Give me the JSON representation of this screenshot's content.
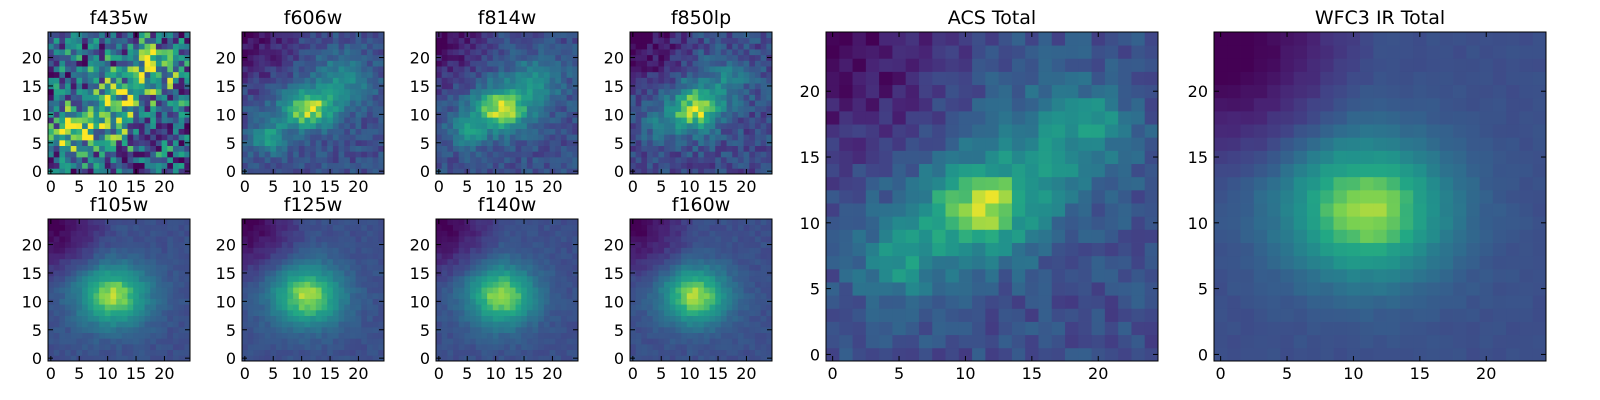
{
  "chart_data": [
    {
      "type": "heatmap",
      "title": "f435w",
      "xticks": [
        "0",
        "5",
        "10",
        "15",
        "20"
      ],
      "yticks": [
        "0",
        "5",
        "10",
        "15",
        "20"
      ],
      "xlim": [
        -0.5,
        24.5
      ],
      "ylim": [
        -0.5,
        24.5
      ],
      "grid_size": [
        25,
        25
      ],
      "colormap": "viridis",
      "peaks": [
        {
          "x": 4,
          "y": 7,
          "amp": 0.48,
          "sx": 2.5,
          "sy": 2.5
        },
        {
          "x": 11,
          "y": 11,
          "amp": 0.38,
          "sx": 4,
          "sy": 3.5
        },
        {
          "x": 18,
          "y": 18,
          "amp": 0.35,
          "sx": 4,
          "sy": 3
        }
      ],
      "background": 0.38,
      "noise": 0.42,
      "corner_dark": 0.0
    },
    {
      "type": "heatmap",
      "title": "f606w",
      "xticks": [
        "0",
        "5",
        "10",
        "15",
        "20"
      ],
      "yticks": [
        "0",
        "5",
        "10",
        "15",
        "20"
      ],
      "xlim": [
        -0.5,
        24.5
      ],
      "ylim": [
        -0.5,
        24.5
      ],
      "grid_size": [
        25,
        25
      ],
      "colormap": "viridis",
      "peaks": [
        {
          "x": 11,
          "y": 11,
          "amp": 0.65,
          "sx": 3.5,
          "sy": 2.5
        },
        {
          "x": 4,
          "y": 6,
          "amp": 0.38,
          "sx": 2,
          "sy": 2
        },
        {
          "x": 17,
          "y": 16,
          "amp": 0.3,
          "sx": 3.5,
          "sy": 3
        }
      ],
      "background": 0.3,
      "noise": 0.1,
      "corner_dark": 0.3
    },
    {
      "type": "heatmap",
      "title": "f814w",
      "xticks": [
        "0",
        "5",
        "10",
        "15",
        "20"
      ],
      "yticks": [
        "0",
        "5",
        "10",
        "15",
        "20"
      ],
      "xlim": [
        -0.5,
        24.5
      ],
      "ylim": [
        -0.5,
        24.5
      ],
      "grid_size": [
        25,
        25
      ],
      "colormap": "viridis",
      "peaks": [
        {
          "x": 11,
          "y": 11,
          "amp": 0.65,
          "sx": 3.5,
          "sy": 2.8
        },
        {
          "x": 5,
          "y": 7,
          "amp": 0.28,
          "sx": 2.5,
          "sy": 2
        },
        {
          "x": 17,
          "y": 16,
          "amp": 0.28,
          "sx": 3.5,
          "sy": 3
        }
      ],
      "background": 0.3,
      "noise": 0.1,
      "corner_dark": 0.3
    },
    {
      "type": "heatmap",
      "title": "f850lp",
      "xticks": [
        "0",
        "5",
        "10",
        "15",
        "20"
      ],
      "yticks": [
        "0",
        "5",
        "10",
        "15",
        "20"
      ],
      "xlim": [
        -0.5,
        24.5
      ],
      "ylim": [
        -0.5,
        24.5
      ],
      "grid_size": [
        25,
        25
      ],
      "colormap": "viridis",
      "peaks": [
        {
          "x": 11,
          "y": 11,
          "amp": 0.65,
          "sx": 3.2,
          "sy": 2.8
        },
        {
          "x": 5,
          "y": 8,
          "amp": 0.22,
          "sx": 2.5,
          "sy": 2
        },
        {
          "x": 16,
          "y": 16,
          "amp": 0.22,
          "sx": 3.5,
          "sy": 3
        }
      ],
      "background": 0.28,
      "noise": 0.13,
      "corner_dark": 0.35
    },
    {
      "type": "heatmap",
      "title": "ACS Total",
      "xticks": [
        "0",
        "5",
        "10",
        "15",
        "20"
      ],
      "yticks": [
        "0",
        "5",
        "10",
        "15",
        "20"
      ],
      "xlim": [
        -0.5,
        24.5
      ],
      "ylim": [
        -0.5,
        24.5
      ],
      "grid_size": [
        25,
        25
      ],
      "colormap": "viridis",
      "peaks": [
        {
          "x": 11,
          "y": 11,
          "amp": 0.62,
          "sx": 3.2,
          "sy": 2.6
        },
        {
          "x": 5,
          "y": 7,
          "amp": 0.34,
          "sx": 2.2,
          "sy": 2.2
        },
        {
          "x": 17,
          "y": 16,
          "amp": 0.3,
          "sx": 3.5,
          "sy": 3.2
        },
        {
          "x": 20,
          "y": 18,
          "amp": 0.18,
          "sx": 1.5,
          "sy": 1.5
        }
      ],
      "background": 0.3,
      "noise": 0.09,
      "corner_dark": 0.35
    },
    {
      "type": "heatmap",
      "title": "f105w",
      "xticks": [
        "0",
        "5",
        "10",
        "15",
        "20"
      ],
      "yticks": [
        "0",
        "5",
        "10",
        "15",
        "20"
      ],
      "xlim": [
        -0.5,
        24.5
      ],
      "ylim": [
        -0.5,
        24.5
      ],
      "grid_size": [
        25,
        25
      ],
      "colormap": "viridis",
      "peaks": [
        {
          "x": 11,
          "y": 11,
          "amp": 0.62,
          "sx": 4.5,
          "sy": 3.8
        }
      ],
      "background": 0.3,
      "noise": 0.04,
      "corner_dark": 0.35
    },
    {
      "type": "heatmap",
      "title": "f125w",
      "xticks": [
        "0",
        "5",
        "10",
        "15",
        "20"
      ],
      "yticks": [
        "0",
        "5",
        "10",
        "15",
        "20"
      ],
      "xlim": [
        -0.5,
        24.5
      ],
      "ylim": [
        -0.5,
        24.5
      ],
      "grid_size": [
        25,
        25
      ],
      "colormap": "viridis",
      "peaks": [
        {
          "x": 11,
          "y": 11,
          "amp": 0.62,
          "sx": 4.5,
          "sy": 3.8
        }
      ],
      "background": 0.3,
      "noise": 0.04,
      "corner_dark": 0.35
    },
    {
      "type": "heatmap",
      "title": "f140w",
      "xticks": [
        "0",
        "5",
        "10",
        "15",
        "20"
      ],
      "yticks": [
        "0",
        "5",
        "10",
        "15",
        "20"
      ],
      "xlim": [
        -0.5,
        24.5
      ],
      "ylim": [
        -0.5,
        24.5
      ],
      "grid_size": [
        25,
        25
      ],
      "colormap": "viridis",
      "peaks": [
        {
          "x": 11,
          "y": 11,
          "amp": 0.62,
          "sx": 4.3,
          "sy": 3.8
        }
      ],
      "background": 0.3,
      "noise": 0.04,
      "corner_dark": 0.35
    },
    {
      "type": "heatmap",
      "title": "f160w",
      "xticks": [
        "0",
        "5",
        "10",
        "15",
        "20"
      ],
      "yticks": [
        "0",
        "5",
        "10",
        "15",
        "20"
      ],
      "xlim": [
        -0.5,
        24.5
      ],
      "ylim": [
        -0.5,
        24.5
      ],
      "grid_size": [
        25,
        25
      ],
      "colormap": "viridis",
      "peaks": [
        {
          "x": 11,
          "y": 11,
          "amp": 0.62,
          "sx": 4.2,
          "sy": 3.6
        }
      ],
      "background": 0.3,
      "noise": 0.04,
      "corner_dark": 0.35
    },
    {
      "type": "heatmap",
      "title": "WFC3 IR Total",
      "xticks": [
        "0",
        "5",
        "10",
        "15",
        "20"
      ],
      "yticks": [
        "0",
        "5",
        "10",
        "15",
        "20"
      ],
      "xlim": [
        -0.5,
        24.5
      ],
      "ylim": [
        -0.5,
        24.5
      ],
      "grid_size": [
        25,
        25
      ],
      "colormap": "viridis",
      "peaks": [
        {
          "x": 11,
          "y": 11,
          "amp": 0.62,
          "sx": 4.5,
          "sy": 3.8
        }
      ],
      "background": 0.3,
      "noise": 0.02,
      "corner_dark": 0.4
    }
  ]
}
